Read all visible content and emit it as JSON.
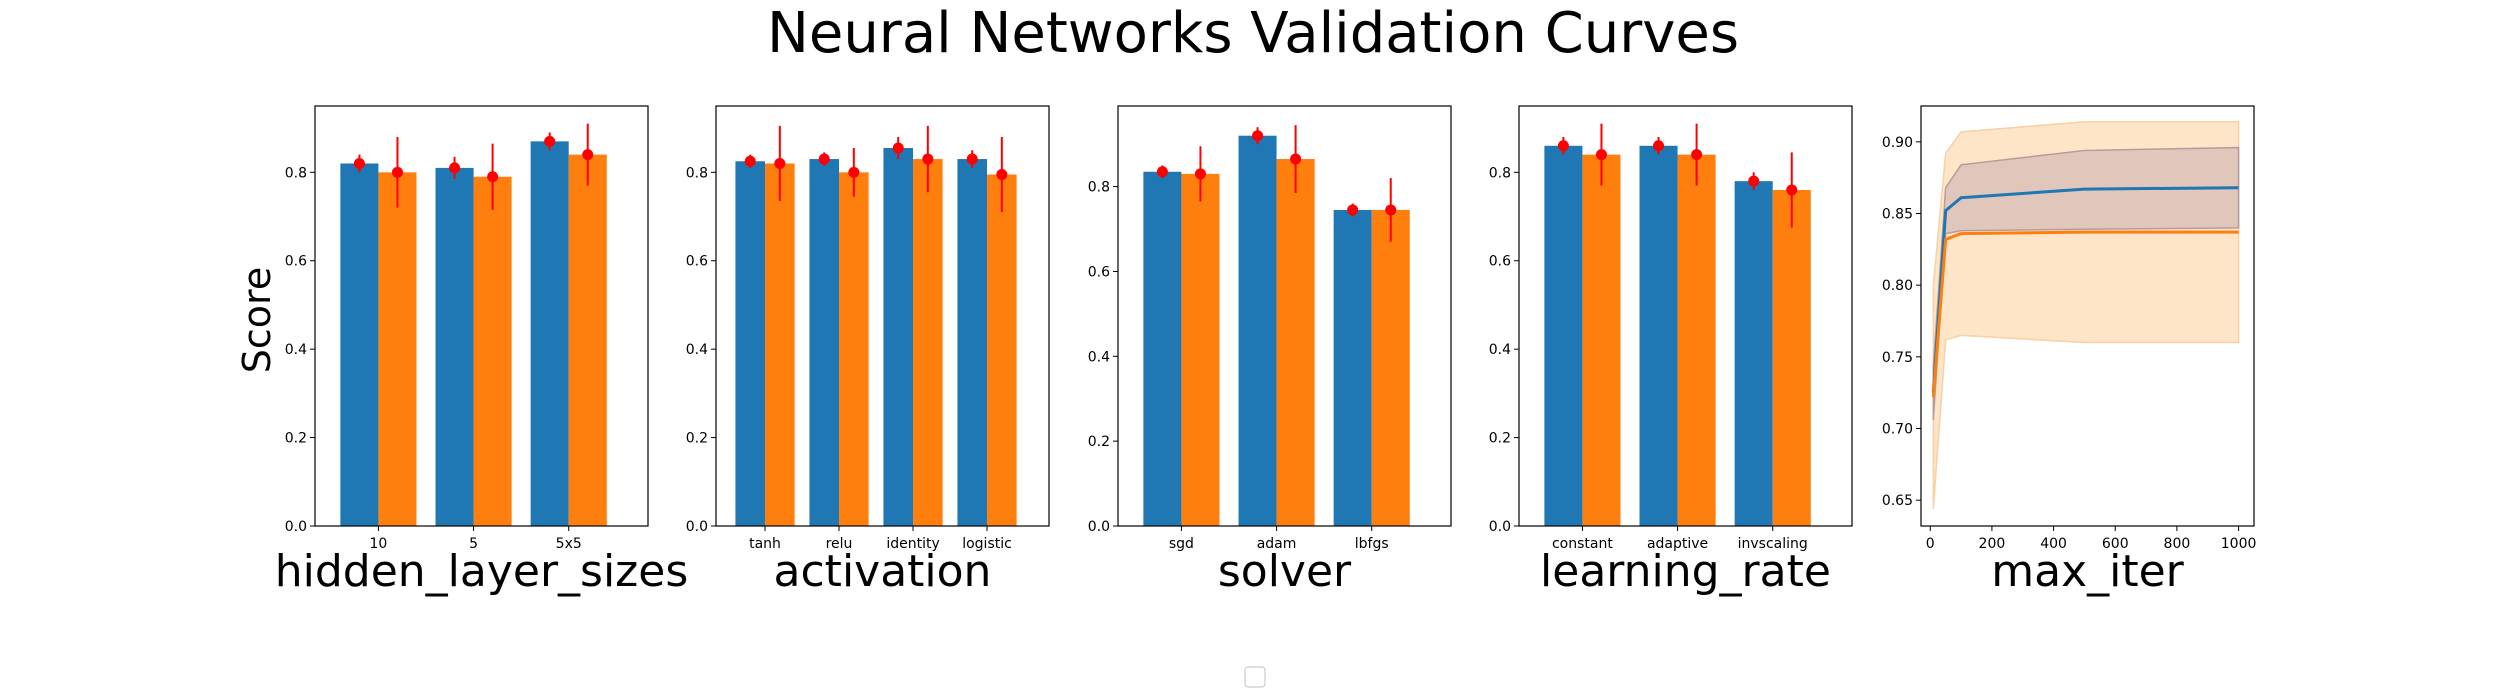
{
  "figure": {
    "title": "Neural Networks Validation Curves",
    "ylabel": "Score"
  },
  "colors": {
    "train": "#1f77b4",
    "test": "#ff7f0e",
    "error": "#ff0000",
    "line_train": "#1f77b4",
    "line_test": "#ff7f0e",
    "band_test": "#ffe5c7",
    "band_train": "#c9adb1"
  },
  "chart_data": [
    {
      "type": "bar",
      "xlabel": "hidden_layer_sizes",
      "categories": [
        "10",
        "5",
        "5x5"
      ],
      "ylim": [
        0,
        0.95
      ],
      "yticks": [
        "0.0",
        "0.2",
        "0.4",
        "0.6",
        "0.8"
      ],
      "series": [
        {
          "values": [
            0.82,
            0.81,
            0.87
          ],
          "errors": [
            0.02,
            0.025,
            0.02
          ]
        },
        {
          "values": [
            0.8,
            0.79,
            0.84
          ],
          "errors": [
            0.08,
            0.075,
            0.07
          ]
        }
      ]
    },
    {
      "type": "bar",
      "xlabel": "activation",
      "categories": [
        "tanh",
        "relu",
        "identity",
        "logistic"
      ],
      "ylim": [
        0,
        0.95
      ],
      "yticks": [
        "0.0",
        "0.2",
        "0.4",
        "0.6",
        "0.8"
      ],
      "series": [
        {
          "values": [
            0.825,
            0.83,
            0.855,
            0.83
          ],
          "errors": [
            0.015,
            0.015,
            0.025,
            0.02
          ]
        },
        {
          "values": [
            0.82,
            0.8,
            0.83,
            0.795
          ],
          "errors": [
            0.085,
            0.055,
            0.075,
            0.085
          ]
        }
      ]
    },
    {
      "type": "bar",
      "xlabel": "solver",
      "categories": [
        "sgd",
        "adam",
        "lbfgs"
      ],
      "ylim": [
        0,
        0.99
      ],
      "yticks": [
        "0.0",
        "0.2",
        "0.4",
        "0.6",
        "0.8"
      ],
      "series": [
        {
          "values": [
            0.835,
            0.92,
            0.745
          ],
          "errors": [
            0.015,
            0.02,
            0.015
          ]
        },
        {
          "values": [
            0.83,
            0.865,
            0.745
          ],
          "errors": [
            0.065,
            0.08,
            0.075
          ]
        }
      ]
    },
    {
      "type": "bar",
      "xlabel": "learning_rate",
      "categories": [
        "constant",
        "adaptive",
        "invscaling"
      ],
      "ylim": [
        0,
        0.95
      ],
      "yticks": [
        "0.0",
        "0.2",
        "0.4",
        "0.6",
        "0.8"
      ],
      "series": [
        {
          "values": [
            0.86,
            0.86,
            0.78
          ],
          "errors": [
            0.02,
            0.02,
            0.02
          ]
        },
        {
          "values": [
            0.84,
            0.84,
            0.76
          ],
          "errors": [
            0.07,
            0.07,
            0.085
          ]
        }
      ]
    },
    {
      "type": "line",
      "xlabel": "max_iter",
      "xlim": [
        -30,
        1050
      ],
      "ylim": [
        0.632,
        0.925
      ],
      "xticks": [
        0,
        200,
        400,
        600,
        800,
        1000
      ],
      "xtick_labels": [
        "0",
        "200",
        "400",
        "600",
        "800",
        "1000"
      ],
      "yticks": [
        0.65,
        0.7,
        0.75,
        0.8,
        0.85,
        0.9
      ],
      "ytick_labels": [
        "0.65",
        "0.70",
        "0.75",
        "0.80",
        "0.85",
        "0.90"
      ],
      "series": [
        {
          "x": [
            10,
            50,
            100,
            500,
            1000
          ],
          "y": [
            0.725,
            0.852,
            0.861,
            0.867,
            0.868
          ],
          "lower": [
            0.706,
            0.836,
            0.838,
            0.839,
            0.84
          ],
          "upper": [
            0.744,
            0.868,
            0.884,
            0.894,
            0.896
          ]
        },
        {
          "x": [
            10,
            50,
            100,
            500,
            1000
          ],
          "y": [
            0.722,
            0.832,
            0.836,
            0.837,
            0.837
          ],
          "lower": [
            0.644,
            0.762,
            0.765,
            0.76,
            0.76
          ],
          "upper": [
            0.8,
            0.892,
            0.907,
            0.914,
            0.914
          ]
        }
      ]
    }
  ],
  "legend": {
    "placement": "bottom-center",
    "entries": []
  }
}
